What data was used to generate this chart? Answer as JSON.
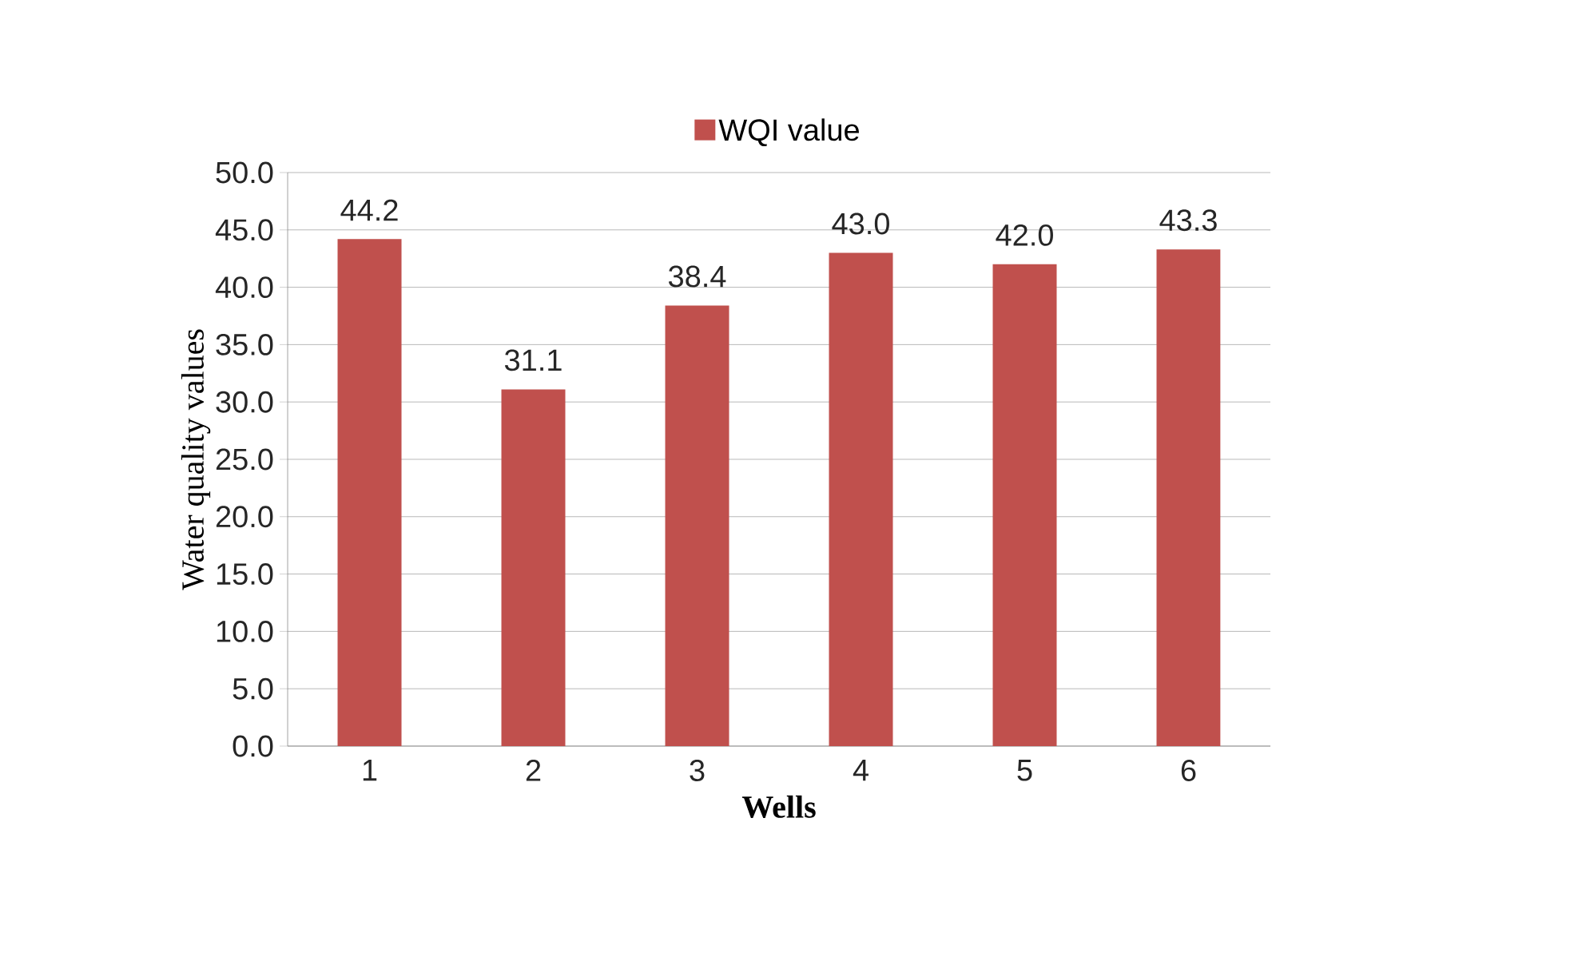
{
  "chart_data": {
    "type": "bar",
    "xlabel": "Wells",
    "ylabel": "Water quality values",
    "categories": [
      "1",
      "2",
      "3",
      "4",
      "5",
      "6"
    ],
    "series": [
      {
        "name": "WQI value",
        "color": "#c0504d",
        "values": [
          44.2,
          31.1,
          38.4,
          43.0,
          42.0,
          43.3
        ],
        "value_labels": [
          "44.2",
          "31.1",
          "38.4",
          "43.0",
          "42.0",
          "43.3"
        ]
      }
    ],
    "ylim": [
      0,
      50
    ],
    "yticks": [
      {
        "value": 0,
        "label": "0.0"
      },
      {
        "value": 5,
        "label": "5.0"
      },
      {
        "value": 10,
        "label": "10.0"
      },
      {
        "value": 15,
        "label": "15.0"
      },
      {
        "value": 20,
        "label": "20.0"
      },
      {
        "value": 25,
        "label": "25.0"
      },
      {
        "value": 30,
        "label": "30.0"
      },
      {
        "value": 35,
        "label": "35.0"
      },
      {
        "value": 40,
        "label": "40.0"
      },
      {
        "value": 45,
        "label": "45.0"
      },
      {
        "value": 50,
        "label": "50.0"
      }
    ],
    "grid": "y",
    "legend": "top"
  }
}
